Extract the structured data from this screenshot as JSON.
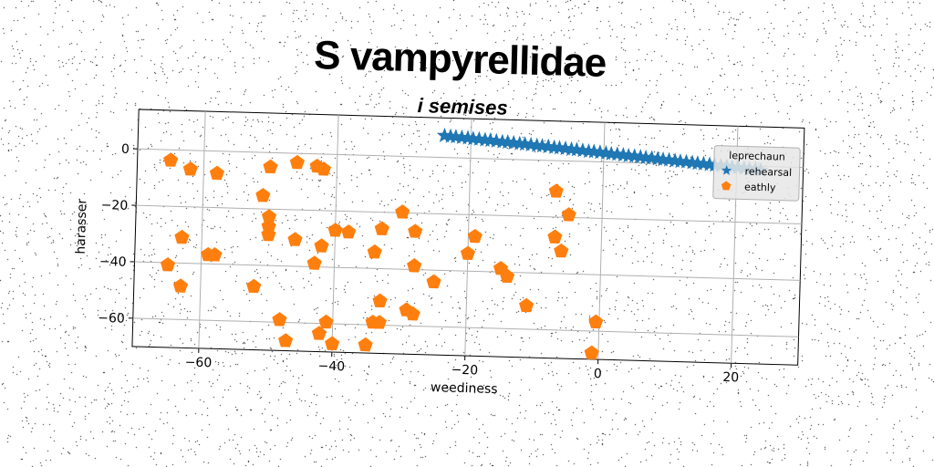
{
  "title": "S vampyrellidae",
  "subtitle": "i semises",
  "chart_data": {
    "type": "scatter",
    "xlabel": "weediness",
    "ylabel": "harasser",
    "xlim": [
      -70,
      30
    ],
    "ylim": [
      -70,
      14
    ],
    "x_ticks": [
      -60,
      -40,
      -20,
      0,
      20
    ],
    "y_ticks": [
      0,
      -20,
      -40,
      -60
    ],
    "grid": true,
    "legend": {
      "title": "leprechaun",
      "placement": "top-right"
    },
    "series": [
      {
        "name": "rehearsal",
        "marker": "star",
        "color": "#1f77b4",
        "x": [
          -24,
          -23.1,
          -22.3,
          -21.4,
          -20.5,
          -19.7,
          -18.8,
          -17.9,
          -17.1,
          -16.2,
          -15.3,
          -14.5,
          -13.6,
          -12.7,
          -11.9,
          -11,
          -10.1,
          -9.3,
          -8.4,
          -7.5,
          -6.7,
          -5.8,
          -4.9,
          -4.1,
          -3.2,
          -2.3,
          -1.5,
          -0.6,
          0.3,
          1.1,
          2,
          2.9,
          3.7,
          4.6,
          5.5,
          6.3,
          7.2,
          8.1,
          8.9,
          9.8,
          10.7,
          11.5,
          12.4,
          13.3,
          14.1,
          15,
          15.9,
          16.7,
          17.6,
          18.5,
          19.3,
          20.2,
          21.1,
          21.9,
          22.8,
          23.6
        ],
        "y": [
          7.7,
          7.5,
          7.4,
          7.2,
          7.1,
          6.9,
          6.8,
          6.6,
          6.5,
          6.3,
          6.1,
          6,
          5.8,
          5.6,
          5.5,
          5.3,
          5.1,
          5,
          4.8,
          4.6,
          4.5,
          4.3,
          4.1,
          4,
          3.8,
          3.6,
          3.5,
          3.3,
          3.1,
          2.9,
          2.8,
          2.6,
          2.4,
          2.3,
          2.1,
          1.9,
          1.8,
          1.6,
          1.4,
          1.3,
          1.1,
          0.9,
          0.8,
          0.6,
          0.4,
          0.3,
          0.1,
          -0.1,
          -0.2,
          -0.4,
          -0.6,
          -0.7,
          -0.9,
          -1.1,
          -1.2,
          -1.4
        ]
      },
      {
        "name": "eathly",
        "marker": "pentagon",
        "color": "#ff7f0e",
        "x": [
          -65,
          -62,
          -58,
          -50,
          -46,
          -43,
          -42,
          -51,
          -50,
          -50,
          -50,
          -63,
          -59,
          -58,
          -65,
          -63,
          -46,
          -42,
          -43,
          -40,
          -38,
          -34,
          -33,
          -30,
          -28,
          -28,
          -35,
          -25,
          -20,
          -19,
          -15,
          -14,
          -52,
          -33,
          -29,
          -28,
          -48,
          -41,
          -42,
          -47,
          -34,
          -33,
          -40,
          -11,
          -7,
          -5,
          -6,
          -7,
          -0.5,
          -1
        ],
        "y": [
          -3.7,
          -6.7,
          -7.9,
          -5.1,
          -3.3,
          -4.4,
          -5.4,
          -15.3,
          -22.7,
          -26.2,
          -29.1,
          -30.9,
          -36.8,
          -36.8,
          -40.8,
          -48.2,
          -30.6,
          -32.6,
          -38.8,
          -26.9,
          -27.4,
          -34.2,
          -25.9,
          -19.8,
          -26.5,
          -38.7,
          -67.2,
          -44.2,
          -33.8,
          -27.7,
          -38.8,
          -41.5,
          -47.6,
          -51.5,
          -54.4,
          -55.8,
          -59.1,
          -59.5,
          -63.6,
          -66.5,
          -59.1,
          -59.1,
          -67.1,
          -51.7,
          -10.9,
          -19.1,
          -32,
          -27.1,
          -56.8,
          -67.8
        ]
      }
    ]
  }
}
